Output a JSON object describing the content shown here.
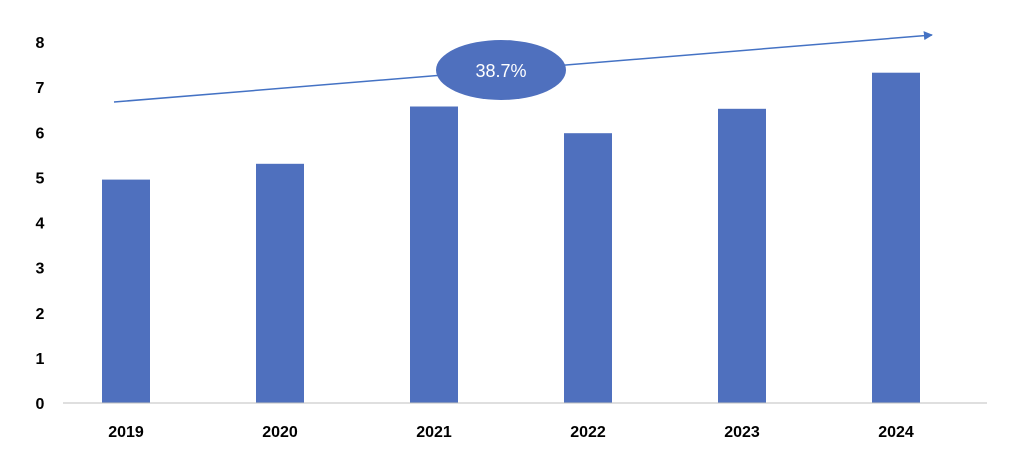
{
  "chart_data": {
    "type": "bar",
    "categories": [
      "2019",
      "2020",
      "2021",
      "2022",
      "2023",
      "2024"
    ],
    "values": [
      4.95,
      5.3,
      6.57,
      5.98,
      6.52,
      7.32
    ],
    "ylim": [
      0,
      8
    ],
    "yticks": [
      0,
      1,
      2,
      3,
      4,
      5,
      6,
      7,
      8
    ],
    "grid": false,
    "legend": "none",
    "annotation": {
      "text": "38.7%",
      "shape": "ellipse-callout-on-trend-arrow"
    },
    "colors": {
      "bar": "#4F70BE",
      "arrow": "#4472C4",
      "callout_fill": "#4F70BE",
      "callout_text": "#ffffff",
      "axis": "#bfbfbf"
    }
  }
}
